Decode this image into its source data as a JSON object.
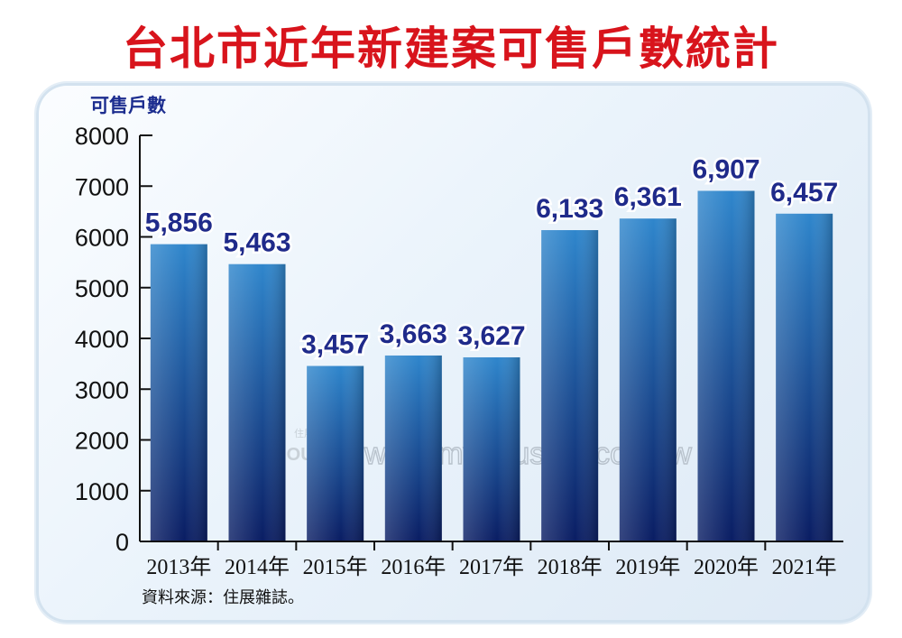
{
  "title": "台北市近年新建案可售戶數統計",
  "source": "資料來源：住展雜誌。",
  "watermark": {
    "url": "www.myhousing.com.tw",
    "logo_text": "MY HOUSING",
    "logo_cjk": "住展房屋網"
  },
  "colors": {
    "title": "#d8141c",
    "bar_top": "#2f86cc",
    "bar_bottom": "#0a1d63",
    "value_label": "#1f2a8a"
  },
  "chart_data": {
    "type": "bar",
    "title": "台北市近年新建案可售戶數統計",
    "ylabel": "可售戶數",
    "xlabel": "",
    "categories": [
      "2013年",
      "2014年",
      "2015年",
      "2016年",
      "2017年",
      "2018年",
      "2019年",
      "2020年",
      "2021年"
    ],
    "values": [
      5856,
      5463,
      3457,
      3663,
      3627,
      6133,
      6361,
      6907,
      6457
    ],
    "value_labels": [
      "5,856",
      "5,463",
      "3,457",
      "3,663",
      "3,627",
      "6,133",
      "6,361",
      "6,907",
      "6,457"
    ],
    "yticks": [
      "0",
      "1000",
      "2000",
      "3000",
      "4000",
      "5000",
      "6000",
      "7000",
      "8000"
    ],
    "ylim": [
      0,
      8000
    ],
    "grid": false,
    "legend": "none"
  }
}
